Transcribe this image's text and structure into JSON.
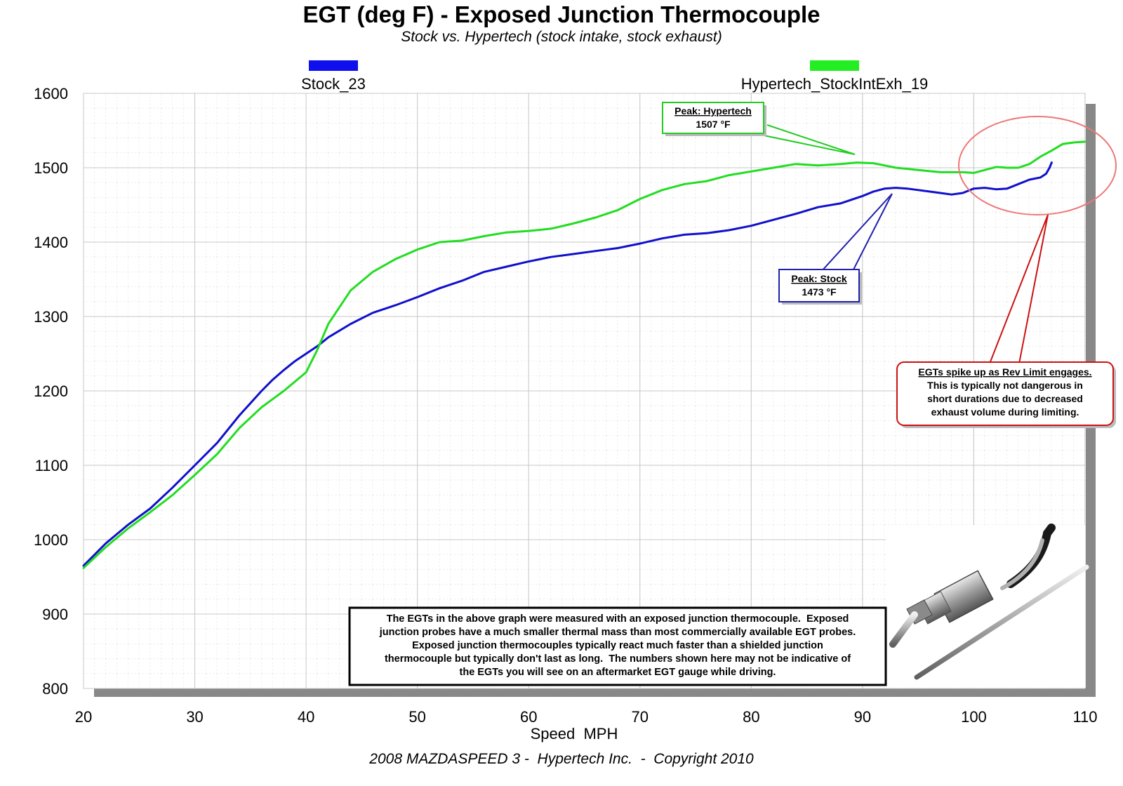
{
  "chart_data": {
    "type": "line",
    "title": "EGT (deg F) - Exposed Junction Thermocouple",
    "subtitle": "Stock vs. Hypertech (stock intake, stock exhaust)",
    "xlabel": "Speed  MPH",
    "ylabel": "",
    "footer": "2008 MAZDASPEED 3 -  Hypertech Inc.  -  Copyright 2010",
    "xlim": [
      20,
      110
    ],
    "ylim": [
      800,
      1600
    ],
    "x_ticks": [
      "20",
      "30",
      "40",
      "50",
      "60",
      "70",
      "80",
      "90",
      "100",
      "110"
    ],
    "y_ticks": [
      "800",
      "900",
      "1000",
      "1100",
      "1200",
      "1300",
      "1400",
      "1500",
      "1600"
    ],
    "grid": true,
    "series": [
      {
        "name": "Stock_23",
        "color": "#1010cc",
        "points": [
          [
            20,
            965
          ],
          [
            22,
            995
          ],
          [
            24,
            1020
          ],
          [
            26,
            1042
          ],
          [
            28,
            1070
          ],
          [
            30,
            1100
          ],
          [
            32,
            1130
          ],
          [
            34,
            1167
          ],
          [
            36,
            1200
          ],
          [
            37,
            1215
          ],
          [
            38,
            1228
          ],
          [
            39,
            1240
          ],
          [
            40,
            1250
          ],
          [
            41,
            1260
          ],
          [
            42,
            1272
          ],
          [
            44,
            1290
          ],
          [
            46,
            1305
          ],
          [
            48,
            1315
          ],
          [
            50,
            1326
          ],
          [
            52,
            1338
          ],
          [
            54,
            1348
          ],
          [
            56,
            1360
          ],
          [
            58,
            1367
          ],
          [
            60,
            1374
          ],
          [
            62,
            1380
          ],
          [
            64,
            1384
          ],
          [
            66,
            1388
          ],
          [
            68,
            1392
          ],
          [
            70,
            1398
          ],
          [
            72,
            1405
          ],
          [
            74,
            1410
          ],
          [
            76,
            1412
          ],
          [
            78,
            1416
          ],
          [
            80,
            1422
          ],
          [
            82,
            1430
          ],
          [
            84,
            1438
          ],
          [
            86,
            1447
          ],
          [
            88,
            1452
          ],
          [
            90,
            1462
          ],
          [
            91,
            1468
          ],
          [
            92,
            1472
          ],
          [
            93,
            1473
          ],
          [
            94,
            1472
          ],
          [
            96,
            1468
          ],
          [
            97,
            1466
          ],
          [
            98,
            1464
          ],
          [
            99,
            1466
          ],
          [
            100,
            1472
          ],
          [
            101,
            1473
          ],
          [
            102,
            1471
          ],
          [
            103,
            1472
          ],
          [
            104,
            1478
          ],
          [
            105,
            1484
          ],
          [
            106,
            1487
          ],
          [
            106.5,
            1492
          ],
          [
            106.8,
            1500
          ],
          [
            107,
            1507
          ]
        ]
      },
      {
        "name": "Hypertech_StockIntExh_19",
        "color": "#22dd22",
        "points": [
          [
            20,
            962
          ],
          [
            22,
            990
          ],
          [
            24,
            1015
          ],
          [
            26,
            1037
          ],
          [
            28,
            1060
          ],
          [
            30,
            1087
          ],
          [
            32,
            1115
          ],
          [
            34,
            1150
          ],
          [
            36,
            1178
          ],
          [
            38,
            1200
          ],
          [
            40,
            1225
          ],
          [
            41,
            1255
          ],
          [
            42,
            1290
          ],
          [
            44,
            1335
          ],
          [
            46,
            1360
          ],
          [
            48,
            1377
          ],
          [
            50,
            1390
          ],
          [
            52,
            1400
          ],
          [
            54,
            1402
          ],
          [
            56,
            1408
          ],
          [
            58,
            1413
          ],
          [
            60,
            1415
          ],
          [
            62,
            1418
          ],
          [
            64,
            1425
          ],
          [
            66,
            1433
          ],
          [
            68,
            1443
          ],
          [
            70,
            1458
          ],
          [
            72,
            1470
          ],
          [
            74,
            1478
          ],
          [
            76,
            1482
          ],
          [
            78,
            1490
          ],
          [
            80,
            1495
          ],
          [
            82,
            1500
          ],
          [
            84,
            1505
          ],
          [
            86,
            1503
          ],
          [
            88,
            1505
          ],
          [
            89.5,
            1507
          ],
          [
            91,
            1506
          ],
          [
            93,
            1500
          ],
          [
            95,
            1497
          ],
          [
            97,
            1494
          ],
          [
            99,
            1494
          ],
          [
            100,
            1493
          ],
          [
            101,
            1497
          ],
          [
            102,
            1501
          ],
          [
            103,
            1500
          ],
          [
            104,
            1500
          ],
          [
            105,
            1505
          ],
          [
            106,
            1515
          ],
          [
            107,
            1523
          ],
          [
            108,
            1532
          ],
          [
            109,
            1534
          ],
          [
            110,
            1535
          ]
        ]
      }
    ],
    "legend": [
      {
        "label": "Stock_23",
        "color": "#1010cc"
      },
      {
        "label": "Hypertech_StockIntExh_19",
        "color": "#22dd22"
      }
    ],
    "annotations": [
      {
        "id": "peak-hypertech",
        "title": "Peak: Hypertech",
        "value": "1507 °F",
        "color": "#22cc22",
        "target_x": 89.5,
        "target_y": 1507
      },
      {
        "id": "peak-stock",
        "title": "Peak: Stock",
        "value": "1473 °F",
        "color": "#2020aa",
        "target_x": 93,
        "target_y": 1473
      },
      {
        "id": "rev-limit",
        "title": "EGTs spike up as Rev Limit engages.",
        "lines": [
          "This is typically not dangerous in",
          "short durations due to decreased",
          "exhaust volume during limiting."
        ],
        "color": "#cc1111"
      }
    ],
    "note": {
      "lines": [
        "The EGTs in the above graph were measured with an exposed junction thermocouple.  Exposed",
        "junction probes have a much smaller thermal mass than most commercially available EGT probes.",
        "Exposed junction thermocouples typically react much faster than a shielded junction",
        "thermocouple but typically don't last as long.  The numbers shown here may not be indicative of",
        "the EGTs you will see on an aftermarket EGT gauge while driving."
      ]
    }
  }
}
